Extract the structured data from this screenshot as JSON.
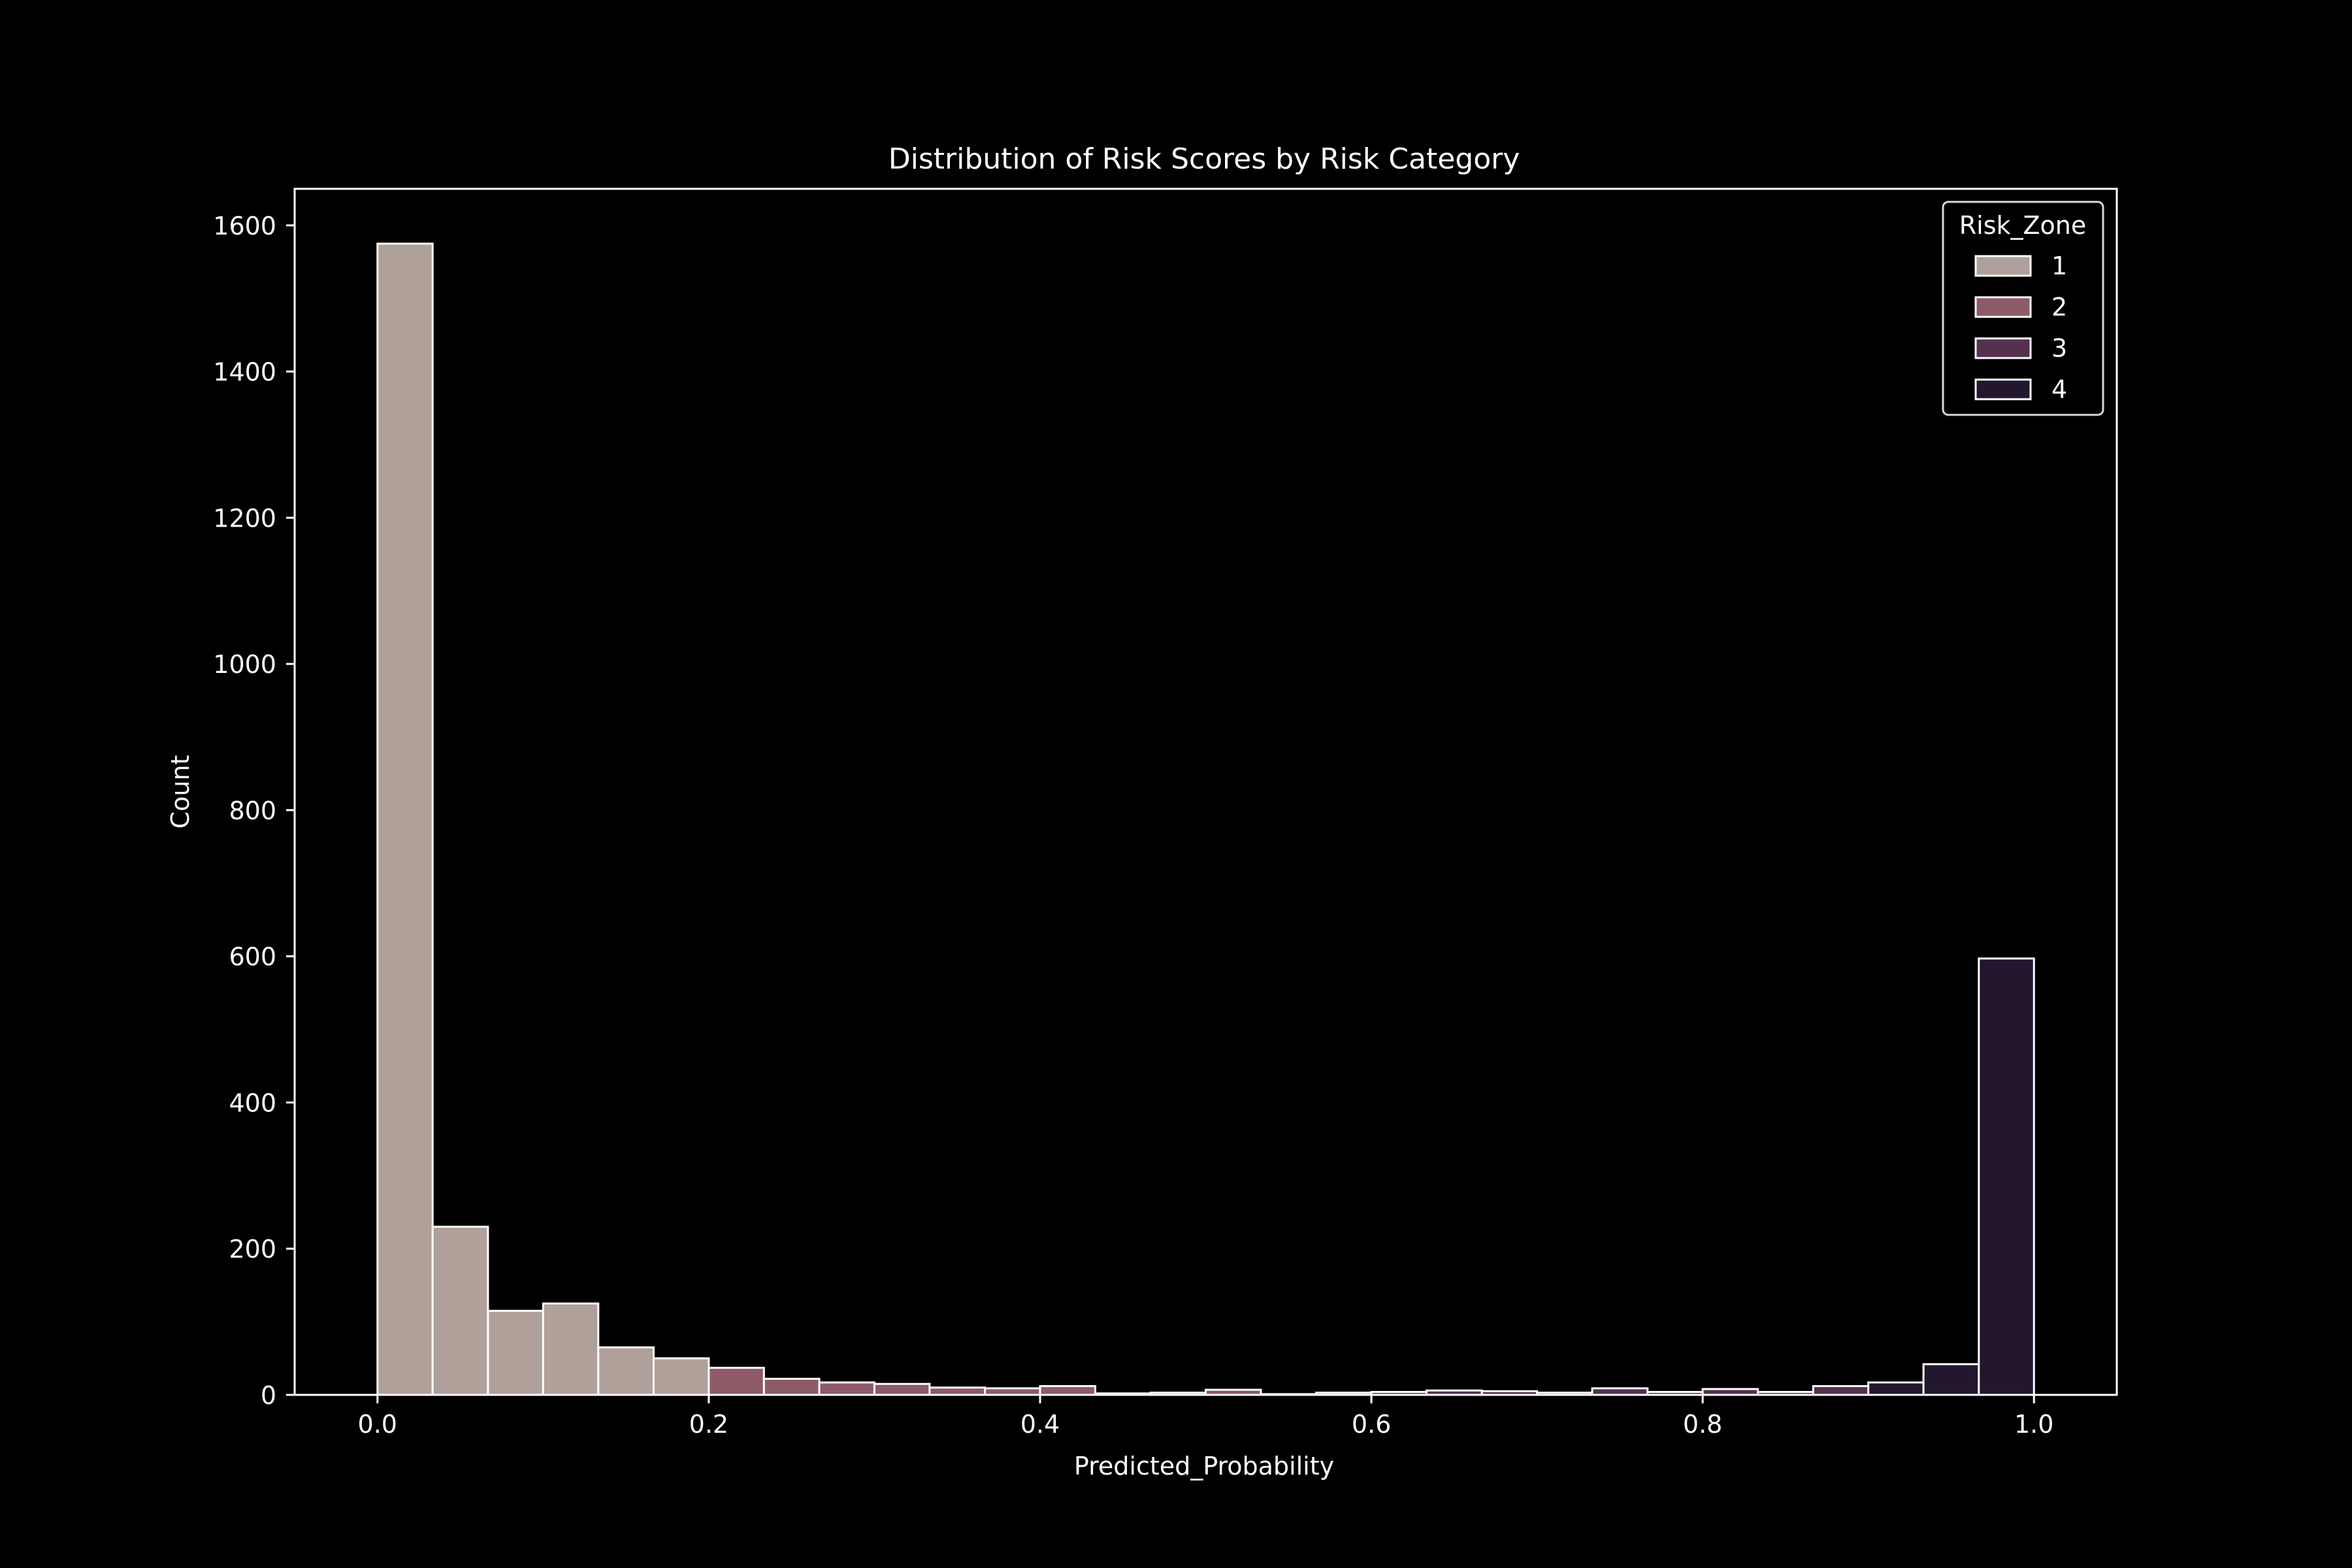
{
  "colors": {
    "background": "#000000",
    "axes": "#ffffff",
    "text": "#ffffff",
    "bar_edge": "#ffffff"
  },
  "chart_data": {
    "type": "bar",
    "title": "Distribution of Risk Scores by Risk Category",
    "xlabel": "Predicted_Probability",
    "ylabel": "Count",
    "xlim": [
      -0.05,
      1.05
    ],
    "ylim": [
      0,
      1650
    ],
    "xticks": [
      0.0,
      0.2,
      0.4,
      0.6,
      0.8,
      1.0
    ],
    "xtick_labels": [
      "0.0",
      "0.2",
      "0.4",
      "0.6",
      "0.8",
      "1.0"
    ],
    "yticks": [
      0,
      200,
      400,
      600,
      800,
      1000,
      1200,
      1400,
      1600
    ],
    "ytick_labels": [
      "0",
      "200",
      "400",
      "600",
      "800",
      "1000",
      "1200",
      "1400",
      "1600"
    ],
    "grid": false,
    "legend": {
      "title": "Risk_Zone",
      "placement": "top-right"
    },
    "bin_width": 0.0333,
    "series": [
      {
        "name": "1",
        "color": "#b0a09a",
        "bins": [
          {
            "x0": 0.0,
            "x1": 0.0333,
            "count": 1575
          },
          {
            "x0": 0.0333,
            "x1": 0.0667,
            "count": 230
          },
          {
            "x0": 0.0667,
            "x1": 0.1,
            "count": 115
          },
          {
            "x0": 0.1,
            "x1": 0.1333,
            "count": 125
          },
          {
            "x0": 0.1333,
            "x1": 0.1667,
            "count": 65
          },
          {
            "x0": 0.1667,
            "x1": 0.2,
            "count": 50
          }
        ]
      },
      {
        "name": "2",
        "color": "#8e5a68",
        "bins": [
          {
            "x0": 0.2,
            "x1": 0.2333,
            "count": 37
          },
          {
            "x0": 0.2333,
            "x1": 0.2667,
            "count": 22
          },
          {
            "x0": 0.2667,
            "x1": 0.3,
            "count": 17
          },
          {
            "x0": 0.3,
            "x1": 0.3333,
            "count": 15
          },
          {
            "x0": 0.3333,
            "x1": 0.3667,
            "count": 10
          },
          {
            "x0": 0.3667,
            "x1": 0.4,
            "count": 9
          },
          {
            "x0": 0.4,
            "x1": 0.4333,
            "count": 12
          },
          {
            "x0": 0.4333,
            "x1": 0.4667,
            "count": 2
          },
          {
            "x0": 0.4667,
            "x1": 0.5,
            "count": 3
          },
          {
            "x0": 0.5,
            "x1": 0.5333,
            "count": 7
          },
          {
            "x0": 0.5333,
            "x1": 0.5667,
            "count": 1
          },
          {
            "x0": 0.5667,
            "x1": 0.6,
            "count": 3
          }
        ]
      },
      {
        "name": "3",
        "color": "#55304f",
        "bins": [
          {
            "x0": 0.6,
            "x1": 0.6333,
            "count": 4
          },
          {
            "x0": 0.6333,
            "x1": 0.6667,
            "count": 6
          },
          {
            "x0": 0.6667,
            "x1": 0.7,
            "count": 5
          },
          {
            "x0": 0.7,
            "x1": 0.7333,
            "count": 3
          },
          {
            "x0": 0.7333,
            "x1": 0.7667,
            "count": 9
          },
          {
            "x0": 0.7667,
            "x1": 0.8,
            "count": 4
          },
          {
            "x0": 0.8,
            "x1": 0.8333,
            "count": 8
          },
          {
            "x0": 0.8333,
            "x1": 0.8667,
            "count": 4
          },
          {
            "x0": 0.8667,
            "x1": 0.9,
            "count": 12
          }
        ]
      },
      {
        "name": "4",
        "color": "#231730",
        "bins": [
          {
            "x0": 0.9,
            "x1": 0.9333,
            "count": 17
          },
          {
            "x0": 0.9333,
            "x1": 0.9667,
            "count": 42
          },
          {
            "x0": 0.9667,
            "x1": 1.0,
            "count": 597
          }
        ]
      }
    ]
  }
}
